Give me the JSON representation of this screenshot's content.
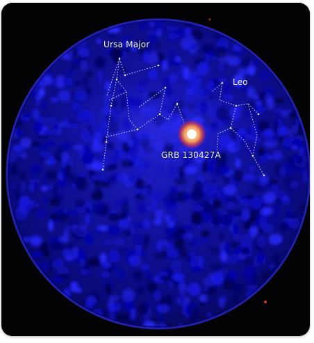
{
  "labels": {
    "ursa_major": "Ursa Major",
    "leo": "Leo",
    "burst": "GRB 130427A"
  },
  "colors": {
    "background": "#030306",
    "sky_deep": "#000070",
    "sky_blue": "#1a1ad8",
    "lines": "#e6e8ff",
    "burst_core": "#ffffff",
    "burst_halo": "#ff5a1e"
  }
}
